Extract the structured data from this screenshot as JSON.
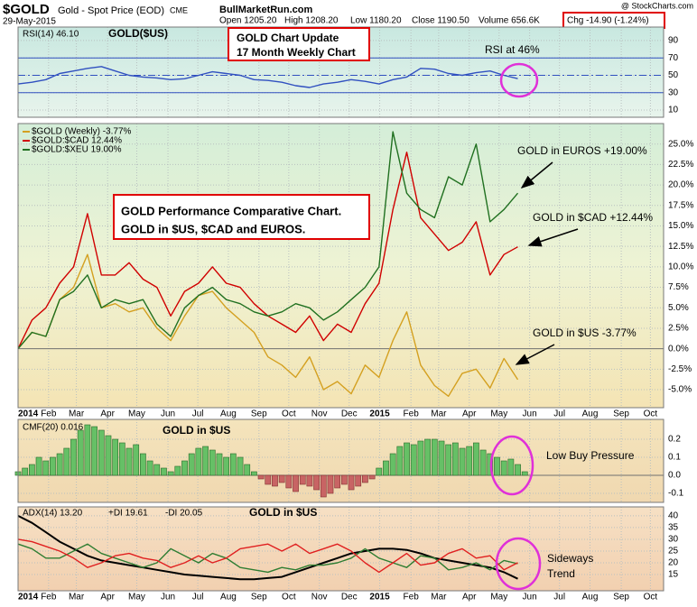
{
  "header": {
    "symbol": "$GOLD",
    "name": "Gold - Spot Price (EOD)",
    "exchange": "CME",
    "date": "29-May-2015",
    "site": "BullMarketRun.com",
    "quote": [
      "Open 1205.20",
      "High 1208.20",
      "Low 1180.20",
      "Close 1190.50",
      "Volume 656.6K"
    ],
    "change": "Chg -14.90 (-1.24%)",
    "credit": "@ StockCharts.com"
  },
  "chart_data": [
    {
      "type": "line",
      "title": "RSI(14) 46.10",
      "subtitle": "GOLD($US)",
      "annotations": [
        "GOLD Chart Update",
        "17 Month Weekly Chart",
        "RSI at 46%"
      ],
      "x": [
        0,
        2,
        4,
        6,
        8,
        10,
        12,
        14,
        16,
        18,
        20,
        22,
        24,
        26,
        28,
        30,
        32,
        34,
        36,
        38,
        40,
        42,
        44,
        46,
        48,
        50,
        52,
        54,
        56,
        58,
        60,
        62,
        64,
        66,
        68,
        70,
        72
      ],
      "series": [
        {
          "name": "RSI(14) 46.10",
          "color": "#3050c0",
          "values": [
            40,
            42,
            45,
            52,
            55,
            58,
            60,
            55,
            50,
            48,
            47,
            45,
            46,
            50,
            54,
            52,
            50,
            45,
            44,
            42,
            38,
            36,
            40,
            42,
            45,
            43,
            40,
            45,
            48,
            58,
            57,
            52,
            50,
            53,
            55,
            50,
            46.1
          ]
        }
      ],
      "xlim": [
        0,
        93
      ],
      "ylim": [
        1.7,
        105.5
      ],
      "yticks": [
        10,
        30,
        50,
        70,
        90
      ],
      "hlines": [
        70,
        50,
        30
      ],
      "hline_color": "#3050c0",
      "grid": true
    },
    {
      "type": "line",
      "annotations": [
        "GOLD Performance Comparative Chart.",
        "GOLD in $US, $CAD and EUROS.",
        "GOLD in EUROS +19.00%",
        "GOLD in $CAD +12.44%",
        "GOLD in $US -3.77%"
      ],
      "x": [
        0,
        2,
        4,
        6,
        8,
        10,
        12,
        14,
        16,
        18,
        20,
        22,
        24,
        26,
        28,
        30,
        32,
        34,
        36,
        38,
        40,
        42,
        44,
        46,
        48,
        50,
        52,
        54,
        56,
        58,
        60,
        62,
        64,
        66,
        68,
        70,
        72
      ],
      "series": [
        {
          "name": "$GOLD (Weekly) -3.77%",
          "color": "#d4a020",
          "values": [
            0,
            2,
            1.5,
            6,
            7.5,
            11.5,
            5,
            5.5,
            4.5,
            5,
            2.5,
            1,
            4,
            6.5,
            7,
            5,
            3.5,
            2,
            -1,
            -2,
            -3.5,
            -1,
            -5,
            -4,
            -5.5,
            -2,
            -3.5,
            1,
            4.5,
            -2,
            -4.5,
            -5.8,
            -3,
            -2.5,
            -4.8,
            -1.2,
            -3.77
          ]
        },
        {
          "name": "$GOLD:$CAD 12.44%",
          "color": "#d00000",
          "values": [
            0,
            3.5,
            5,
            8,
            10,
            16.5,
            9,
            9,
            10.5,
            8.5,
            7.5,
            4,
            7,
            8,
            10,
            8,
            7.5,
            5.5,
            4,
            3,
            2,
            4,
            1,
            3,
            2,
            5.5,
            8,
            17,
            24,
            16,
            14,
            12,
            13,
            15.5,
            9,
            11.5,
            12.44
          ]
        },
        {
          "name": "$GOLD:$XEU 19.00%",
          "color": "#207020",
          "values": [
            0,
            2,
            1.5,
            6,
            7,
            9,
            5,
            6,
            5.5,
            6,
            3,
            1.5,
            5,
            6.5,
            7.5,
            6,
            5.5,
            4.5,
            4,
            4.5,
            5.5,
            5,
            3.5,
            4.5,
            6,
            7.5,
            10,
            26.5,
            19,
            17,
            16,
            21,
            20,
            25,
            15.5,
            17,
            19
          ]
        }
      ],
      "xlim": [
        0,
        93
      ],
      "xticks": [
        {
          "value": 0,
          "label": "2014"
        },
        {
          "value": 4.4,
          "label": "Feb"
        },
        {
          "value": 8.4,
          "label": "Mar"
        },
        {
          "value": 12.9,
          "label": "Apr"
        },
        {
          "value": 17.1,
          "label": "May"
        },
        {
          "value": 21.6,
          "label": "Jun"
        },
        {
          "value": 25.9,
          "label": "Jul"
        },
        {
          "value": 30.3,
          "label": "Aug"
        },
        {
          "value": 34.7,
          "label": "Sep"
        },
        {
          "value": 39,
          "label": "Oct"
        },
        {
          "value": 43.4,
          "label": "Nov"
        },
        {
          "value": 47.7,
          "label": "Dec"
        },
        {
          "value": 52.1,
          "label": "2015"
        },
        {
          "value": 56.6,
          "label": "Feb"
        },
        {
          "value": 60.6,
          "label": "Mar"
        },
        {
          "value": 65,
          "label": "Apr"
        },
        {
          "value": 69.3,
          "label": "May"
        },
        {
          "value": 73.7,
          "label": "Jun"
        },
        {
          "value": 78,
          "label": "Jul"
        },
        {
          "value": 82.4,
          "label": "Aug"
        },
        {
          "value": 86.9,
          "label": "Sep"
        },
        {
          "value": 91.1,
          "label": "Oct"
        }
      ],
      "ylim": [
        -7.2,
        27.5
      ],
      "yticks": [
        {
          "value": -5,
          "label": "-5.0%"
        },
        {
          "value": -2.5,
          "label": "-2.5%"
        },
        {
          "value": 0,
          "label": "0.0%"
        },
        {
          "value": 2.5,
          "label": "2.5%"
        },
        {
          "value": 5,
          "label": "5.0%"
        },
        {
          "value": 7.5,
          "label": "7.5%"
        },
        {
          "value": 10,
          "label": "10.0%"
        },
        {
          "value": 12.5,
          "label": "12.5%"
        },
        {
          "value": 15,
          "label": "15.0%"
        },
        {
          "value": 17.5,
          "label": "17.5%"
        },
        {
          "value": 20,
          "label": "20.0%"
        },
        {
          "value": 22.5,
          "label": "22.5%"
        },
        {
          "value": 25,
          "label": "25.0%"
        }
      ],
      "grid": true
    },
    {
      "type": "bar",
      "subtitle": "GOLD in $US",
      "annotations": [
        "Low Buy Pressure"
      ],
      "x": [
        0,
        1,
        2,
        3,
        4,
        5,
        6,
        7,
        8,
        9,
        10,
        11,
        12,
        13,
        14,
        15,
        16,
        17,
        18,
        19,
        20,
        21,
        22,
        23,
        24,
        25,
        26,
        27,
        28,
        29,
        30,
        31,
        32,
        33,
        34,
        35,
        36,
        37,
        38,
        39,
        40,
        41,
        42,
        43,
        44,
        45,
        46,
        47,
        48,
        49,
        50,
        51,
        52,
        53,
        54,
        55,
        56,
        57,
        58,
        59,
        60,
        61,
        62,
        63,
        64,
        65,
        66,
        67,
        68,
        69,
        70,
        71,
        72,
        73
      ],
      "series": [
        {
          "name": "CMF(20) 0.016",
          "color": "#66c066",
          "negative_color": "#c86464",
          "values": [
            0.02,
            0.04,
            0.06,
            0.1,
            0.08,
            0.1,
            0.12,
            0.15,
            0.2,
            0.25,
            0.28,
            0.27,
            0.25,
            0.22,
            0.2,
            0.18,
            0.15,
            0.17,
            0.12,
            0.08,
            0.06,
            0.04,
            0.02,
            0.05,
            0.08,
            0.12,
            0.15,
            0.16,
            0.14,
            0.12,
            0.1,
            0.12,
            0.1,
            0.06,
            0.02,
            -0.02,
            -0.05,
            -0.06,
            -0.04,
            -0.07,
            -0.09,
            -0.05,
            -0.06,
            -0.08,
            -0.12,
            -0.1,
            -0.07,
            -0.05,
            -0.08,
            -0.06,
            -0.04,
            -0.02,
            0.04,
            0.08,
            0.12,
            0.16,
            0.18,
            0.17,
            0.19,
            0.2,
            0.2,
            0.19,
            0.17,
            0.18,
            0.15,
            0.16,
            0.18,
            0.14,
            0.12,
            0.1,
            0.08,
            0.09,
            0.06,
            0.02
          ]
        }
      ],
      "xlim": [
        0,
        93
      ],
      "ylim": [
        -0.15,
        0.31
      ],
      "yticks": [
        -0.1,
        {
          "value": 0,
          "label": "0.0"
        },
        0.1,
        0.2
      ],
      "grid": true
    },
    {
      "type": "line",
      "subtitle": "GOLD in $US",
      "annotations": [
        "Sideways",
        "Trend"
      ],
      "x": [
        0,
        2,
        4,
        6,
        8,
        10,
        12,
        14,
        16,
        18,
        20,
        22,
        24,
        26,
        28,
        30,
        32,
        34,
        36,
        38,
        40,
        42,
        44,
        46,
        48,
        50,
        52,
        54,
        56,
        58,
        60,
        62,
        64,
        66,
        68,
        70,
        72
      ],
      "series": [
        {
          "name": "ADX(14) 13.20",
          "color": "#000000",
          "values": [
            40,
            37,
            33,
            29,
            26,
            23,
            21,
            20,
            19,
            18,
            17,
            16,
            15,
            14.5,
            14,
            13.5,
            13,
            13,
            13.5,
            14,
            16,
            18,
            20,
            22,
            24,
            25,
            26,
            26,
            25.5,
            24,
            22,
            21,
            20,
            19,
            18,
            16,
            13.2
          ]
        },
        {
          "name": "+DI 19.61",
          "color": "#2e7d32",
          "values": [
            28,
            26,
            22,
            22,
            25,
            28,
            24,
            22,
            20,
            18,
            20,
            26,
            23,
            20,
            24,
            22,
            18,
            17,
            16,
            18,
            17,
            19,
            19,
            20,
            22,
            26,
            22,
            20,
            18,
            23,
            22,
            17,
            18,
            20,
            17,
            21,
            19.61
          ]
        },
        {
          "name": "-DI 20.05",
          "color": "#e02020",
          "values": [
            30,
            29,
            27,
            25,
            22,
            18,
            20,
            23,
            24,
            22,
            21,
            18,
            20,
            23,
            20,
            22,
            26,
            27,
            28,
            25,
            28,
            24,
            26,
            28,
            25,
            20,
            16,
            20,
            24,
            19,
            20,
            24,
            26,
            22,
            23,
            17,
            20.05
          ]
        }
      ],
      "xlim": [
        0,
        93
      ],
      "xticks": [
        {
          "value": 0,
          "label": "2014"
        },
        {
          "value": 4.4,
          "label": "Feb"
        },
        {
          "value": 8.4,
          "label": "Mar"
        },
        {
          "value": 12.9,
          "label": "Apr"
        },
        {
          "value": 17.1,
          "label": "May"
        },
        {
          "value": 21.6,
          "label": "Jun"
        },
        {
          "value": 25.9,
          "label": "Jul"
        },
        {
          "value": 30.3,
          "label": "Aug"
        },
        {
          "value": 34.7,
          "label": "Sep"
        },
        {
          "value": 39,
          "label": "Oct"
        },
        {
          "value": 43.4,
          "label": "Nov"
        },
        {
          "value": 47.7,
          "label": "Dec"
        },
        {
          "value": 52.1,
          "label": "2015"
        },
        {
          "value": 56.6,
          "label": "Feb"
        },
        {
          "value": 60.6,
          "label": "Mar"
        },
        {
          "value": 65,
          "label": "Apr"
        },
        {
          "value": 69.3,
          "label": "May"
        },
        {
          "value": 73.7,
          "label": "Jun"
        },
        {
          "value": 78,
          "label": "Jul"
        },
        {
          "value": 82.4,
          "label": "Aug"
        },
        {
          "value": 86.9,
          "label": "Sep"
        },
        {
          "value": 91.1,
          "label": "Oct"
        }
      ],
      "ylim": [
        8.1,
        43.8
      ],
      "yticks": [
        15,
        20,
        25,
        30,
        35,
        40
      ],
      "grid": true
    }
  ]
}
